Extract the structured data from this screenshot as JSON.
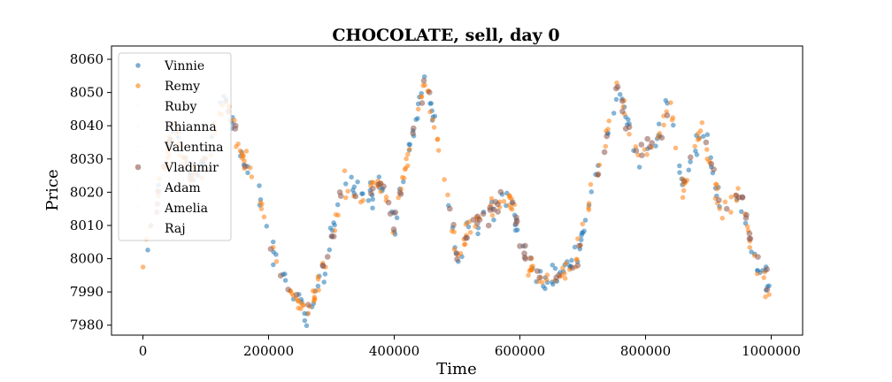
{
  "chart_data": {
    "type": "scatter",
    "title": "CHOCOLATE, sell, day 0",
    "xlabel": "Time",
    "ylabel": "Price",
    "xlim": [
      -50000,
      1050000
    ],
    "ylim": [
      7977,
      8064
    ],
    "x_ticks": [
      0,
      200000,
      400000,
      600000,
      800000,
      1000000
    ],
    "x_tick_labels": [
      "0",
      "200000",
      "400000",
      "600000",
      "800000",
      "1000000"
    ],
    "y_ticks": [
      7980,
      7990,
      8000,
      8010,
      8020,
      8030,
      8040,
      8050,
      8060
    ],
    "y_tick_labels": [
      "7980",
      "7990",
      "8000",
      "8010",
      "8020",
      "8030",
      "8040",
      "8050",
      "8060"
    ],
    "grid": false,
    "legend_position": "top-left",
    "price_path": {
      "x": [
        0,
        25000,
        50000,
        75000,
        100000,
        130000,
        160000,
        185000,
        210000,
        230000,
        260000,
        290000,
        320000,
        350000,
        380000,
        400000,
        420000,
        450000,
        470000,
        500000,
        520000,
        550000,
        580000,
        610000,
        640000,
        660000,
        690000,
        720000,
        755000,
        790000,
        810000,
        840000,
        860000,
        890000,
        920000,
        950000,
        975000,
        1000000
      ],
      "y": [
        8000,
        8020,
        8040,
        8025,
        8030,
        8048,
        8030,
        8018,
        8000,
        7992,
        7983,
        7998,
        8023,
        8018,
        8022,
        8010,
        8030,
        8055,
        8035,
        8000,
        8010,
        8013,
        8020,
        8000,
        7992,
        7995,
        8000,
        8025,
        8050,
        8030,
        8035,
        8045,
        8020,
        8040,
        8015,
        8020,
        8000,
        7990
      ]
    },
    "series": [
      {
        "name": "Vinnie",
        "color": "#1f77b4",
        "marker_size": 5,
        "n_points": 220
      },
      {
        "name": "Remy",
        "color": "#ff7f0e",
        "marker_size": 5,
        "n_points": 260
      },
      {
        "name": "Ruby",
        "color": "#2ca02c",
        "marker_size": 0.6,
        "n_points": 0
      },
      {
        "name": "Rhianna",
        "color": "#d62728",
        "marker_size": 0.6,
        "n_points": 0
      },
      {
        "name": "Valentina",
        "color": "#9467bd",
        "marker_size": 0.6,
        "n_points": 0
      },
      {
        "name": "Vladimir",
        "color": "#8c564b",
        "marker_size": 6,
        "n_points": 120
      },
      {
        "name": "Adam",
        "color": "#e377c2",
        "marker_size": 0.6,
        "n_points": 0
      },
      {
        "name": "Amelia",
        "color": "#7f7f7f",
        "marker_size": 0.6,
        "n_points": 0
      },
      {
        "name": "Raj",
        "color": "#bcbd22",
        "marker_size": 0.6,
        "n_points": 0
      }
    ]
  }
}
